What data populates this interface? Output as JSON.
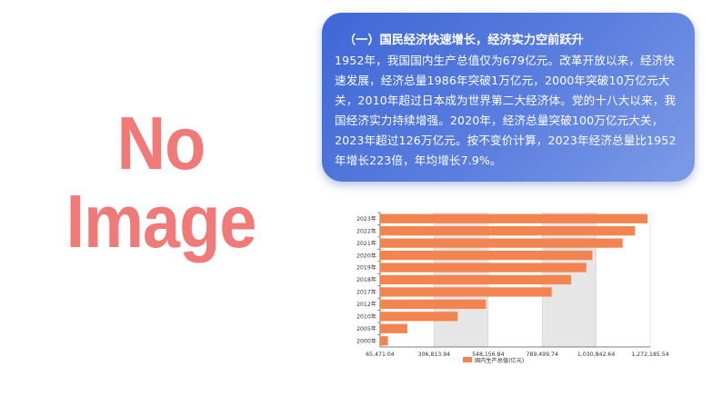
{
  "placeholder": {
    "line1": "No",
    "line2": "Image"
  },
  "card": {
    "title": "（一）国民经济快速增长，经济实力空前跃升",
    "body": "1952年，我国国内生产总值仅为679亿元。改革开放以来，经济快速发展，经济总量1986年突破1万亿元，2000年突破10万亿元大关，2010年超过日本成为世界第二大经济体。党的十八大以来，我国经济实力持续增强。2020年，经济总量突破100万亿元大关，2023年超过126万亿元。按不变价计算，2023年经济总量比1952年增长223倍，年均增长7.9%。"
  },
  "colors": {
    "bar": "#f4844f",
    "card_gradient_start": "#3f67d6",
    "card_gradient_end": "#7d9be6",
    "placeholder_text": "#f07a78"
  },
  "chart_data": {
    "type": "bar",
    "orientation": "horizontal",
    "categories": [
      "2023年",
      "2022年",
      "2021年",
      "2020年",
      "2019年",
      "2018年",
      "2017年",
      "2012年",
      "2010年",
      "2005年",
      "2000年"
    ],
    "series": [
      {
        "name": "国内生产总值(亿元)",
        "values": [
          1260582,
          1204724,
          1149237,
          1013567,
          986515,
          919281,
          832036,
          538580,
          412119,
          187319,
          100280
        ]
      }
    ],
    "xlim": [
      65471.04,
      1272185.54
    ],
    "x_ticks": [
      "65,471.04",
      "306,813.94",
      "548,156.84",
      "789,499.74",
      "1,030,842.64",
      "1,272,185.54"
    ],
    "legend_position": "bottom",
    "grid": true
  }
}
